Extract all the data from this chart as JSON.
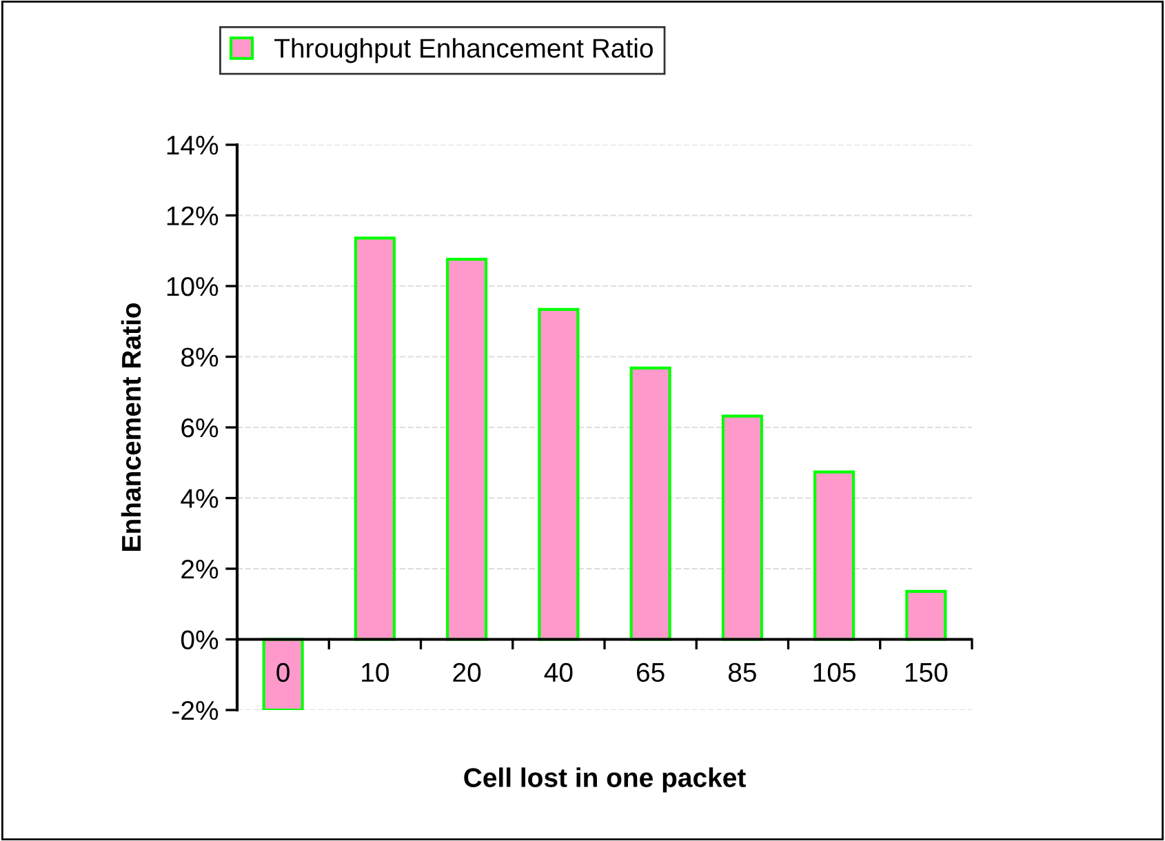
{
  "chart_data": {
    "type": "bar",
    "xlabel": "Cell lost in one packet",
    "ylabel": "Enhancement Ratio",
    "categories": [
      "0",
      "10",
      "20",
      "40",
      "65",
      "85",
      "105",
      "150"
    ],
    "series": [
      {
        "name": "Throughput Enhancement Ratio",
        "color": "#ff99cc",
        "values": [
          -2.0,
          11.36,
          10.76,
          9.34,
          7.68,
          6.32,
          4.74,
          1.36
        ]
      }
    ],
    "ylim": [
      -2,
      14
    ],
    "yticks": [
      {
        "value": -2,
        "label": "-2%"
      },
      {
        "value": 0,
        "label": "0%"
      },
      {
        "value": 2,
        "label": "2%"
      },
      {
        "value": 4,
        "label": "4%"
      },
      {
        "value": 6,
        "label": "6%"
      },
      {
        "value": 8,
        "label": "8%"
      },
      {
        "value": 10,
        "label": "10%"
      },
      {
        "value": 12,
        "label": "12%"
      },
      {
        "value": 14,
        "label": "14%"
      }
    ],
    "grid": "y",
    "legend": "top left"
  }
}
